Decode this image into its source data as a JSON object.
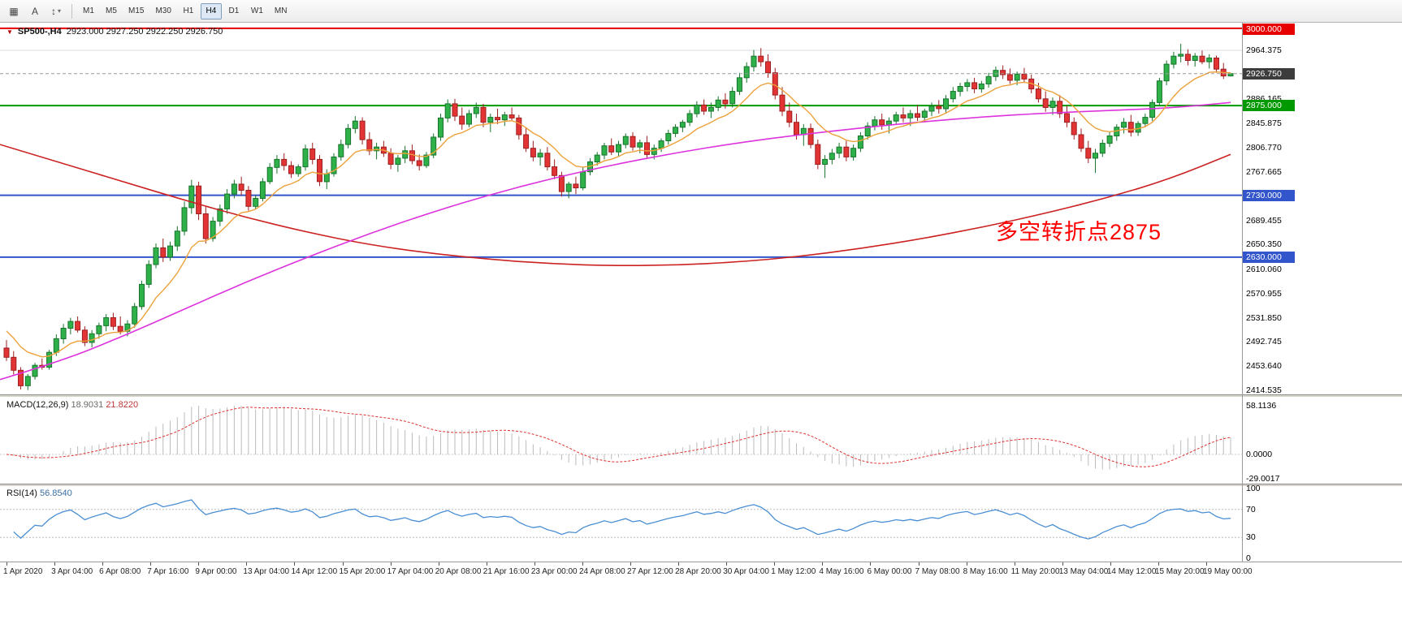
{
  "toolbar": {
    "tools": [
      {
        "name": "chart-window-tool",
        "glyph": "▦"
      },
      {
        "name": "text-annotation-tool",
        "glyph": "A"
      },
      {
        "name": "scale-tool",
        "glyph": "↕",
        "caret": "▾"
      }
    ],
    "timeframes": [
      "M1",
      "M5",
      "M15",
      "M30",
      "H1",
      "H4",
      "D1",
      "W1",
      "MN"
    ],
    "active_timeframe": "H4"
  },
  "chart_header": {
    "marker_glyph": "▼",
    "title": "SP500-,H4",
    "ohlc": "2923.000 2927.250 2922.250 2926.750"
  },
  "macd_panel": {
    "label": "MACD(12,26,9)",
    "value_main": "18.9031",
    "value_signal": "21.8220",
    "axis": [
      "58.1136",
      "0.0000",
      "-29.0017"
    ]
  },
  "rsi_panel": {
    "label": "RSI(14)",
    "value": "56.8540",
    "axis": [
      "100",
      "70",
      "30",
      "0"
    ]
  },
  "chart_data": {
    "type": "candlestick",
    "symbol": "SP500-",
    "timeframe": "H4",
    "ohlc_current": {
      "open": 2923.0,
      "high": 2927.25,
      "low": 2922.25,
      "close": 2926.75
    },
    "annotation": {
      "text": "多空转折点2875",
      "color": "#ff0000"
    },
    "colors": {
      "up": "#2fb14a",
      "up_border": "#17742c",
      "down": "#e23434",
      "down_border": "#9e1f1f",
      "ma_fast": "#eda13a",
      "ma_mid": "#dd33dd",
      "ma_slow": "#cc2222",
      "macd_hist": "#bbbbbb",
      "macd_signal": "#e03030",
      "rsi_line": "#4a8fd4"
    },
    "price_axis": {
      "labels": [
        "2964.375",
        "2886.165",
        "2845.875",
        "2806.770",
        "2767.665",
        "2689.455",
        "2650.350",
        "2610.060",
        "2570.955",
        "2531.850",
        "2492.745",
        "2453.640",
        "2414.535"
      ],
      "gridline_at": 2964.375
    },
    "hlines": [
      {
        "price": 3000.0,
        "label": "3000.000",
        "color": "#e60000"
      },
      {
        "price": 2926.75,
        "label": "2926.750",
        "color": "#3c3c3c",
        "style": "current"
      },
      {
        "price": 2875.0,
        "label": "2875.000",
        "color": "#009900"
      },
      {
        "price": 2730.0,
        "label": "2730.000",
        "color": "#3355cc"
      },
      {
        "price": 2630.0,
        "label": "2630.000",
        "color": "#3355cc"
      }
    ],
    "x_axis": {
      "labels": [
        "1 Apr 2020",
        "3 Apr 04:00",
        "6 Apr 08:00",
        "7 Apr 16:00",
        "9 Apr 00:00",
        "13 Apr 04:00",
        "14 Apr 12:00",
        "15 Apr 20:00",
        "17 Apr 04:00",
        "20 Apr 08:00",
        "21 Apr 16:00",
        "23 Apr 00:00",
        "24 Apr 08:00",
        "27 Apr 12:00",
        "28 Apr 20:00",
        "30 Apr 04:00",
        "1 May 12:00",
        "4 May 16:00",
        "6 May 00:00",
        "7 May 08:00",
        "8 May 16:00",
        "11 May 20:00",
        "13 May 04:00",
        "14 May 12:00",
        "15 May 20:00",
        "19 May 00:00"
      ]
    },
    "indicators": {
      "macd": {
        "fast": 12,
        "slow": 26,
        "signal": 9,
        "current_main": 18.9031,
        "current_signal": 21.822,
        "range": [
          -29.0017,
          58.1136
        ]
      },
      "rsi": {
        "period": 14,
        "current": 56.854,
        "levels": [
          30,
          70
        ],
        "range": [
          0,
          100
        ]
      }
    },
    "ma_fast": {
      "type": "ema",
      "period": 10,
      "seed": 2520
    },
    "ma_mid": {
      "points": [
        [
          0,
          2432
        ],
        [
          0.05,
          2462
        ],
        [
          0.1,
          2502
        ],
        [
          0.15,
          2546
        ],
        [
          0.2,
          2590
        ],
        [
          0.25,
          2630
        ],
        [
          0.3,
          2668
        ],
        [
          0.35,
          2702
        ],
        [
          0.4,
          2732
        ],
        [
          0.45,
          2758
        ],
        [
          0.5,
          2780
        ],
        [
          0.55,
          2799
        ],
        [
          0.6,
          2815
        ],
        [
          0.65,
          2828
        ],
        [
          0.7,
          2839
        ],
        [
          0.75,
          2849
        ],
        [
          0.8,
          2857
        ],
        [
          0.85,
          2863
        ],
        [
          0.9,
          2867
        ],
        [
          0.95,
          2871
        ],
        [
          1,
          2880
        ]
      ]
    },
    "ma_slow": {
      "points": [
        [
          0,
          2812
        ],
        [
          0.05,
          2782
        ],
        [
          0.1,
          2752
        ],
        [
          0.15,
          2722
        ],
        [
          0.2,
          2694
        ],
        [
          0.25,
          2670
        ],
        [
          0.3,
          2650
        ],
        [
          0.35,
          2636
        ],
        [
          0.4,
          2626
        ],
        [
          0.45,
          2619
        ],
        [
          0.5,
          2616
        ],
        [
          0.55,
          2617
        ],
        [
          0.6,
          2622
        ],
        [
          0.65,
          2631
        ],
        [
          0.7,
          2644
        ],
        [
          0.75,
          2660
        ],
        [
          0.8,
          2679
        ],
        [
          0.85,
          2701
        ],
        [
          0.9,
          2726
        ],
        [
          0.95,
          2756
        ],
        [
          1,
          2796
        ]
      ]
    },
    "candles": [
      [
        2483,
        2496,
        2462,
        2468
      ],
      [
        2468,
        2478,
        2440,
        2447
      ],
      [
        2447,
        2452,
        2416,
        2422
      ],
      [
        2422,
        2441,
        2415,
        2437
      ],
      [
        2437,
        2459,
        2432,
        2455
      ],
      [
        2455,
        2466,
        2448,
        2452
      ],
      [
        2452,
        2480,
        2448,
        2476
      ],
      [
        2476,
        2505,
        2470,
        2498
      ],
      [
        2498,
        2522,
        2490,
        2515
      ],
      [
        2515,
        2532,
        2505,
        2526
      ],
      [
        2526,
        2534,
        2508,
        2512
      ],
      [
        2512,
        2518,
        2486,
        2492
      ],
      [
        2492,
        2512,
        2484,
        2506
      ],
      [
        2506,
        2524,
        2498,
        2519
      ],
      [
        2519,
        2538,
        2510,
        2532
      ],
      [
        2532,
        2540,
        2512,
        2518
      ],
      [
        2518,
        2534,
        2505,
        2510
      ],
      [
        2510,
        2528,
        2502,
        2522
      ],
      [
        2522,
        2556,
        2516,
        2550
      ],
      [
        2550,
        2592,
        2545,
        2586
      ],
      [
        2586,
        2625,
        2580,
        2618
      ],
      [
        2618,
        2652,
        2612,
        2645
      ],
      [
        2645,
        2660,
        2622,
        2630
      ],
      [
        2630,
        2655,
        2624,
        2648
      ],
      [
        2648,
        2680,
        2640,
        2672
      ],
      [
        2672,
        2720,
        2665,
        2710
      ],
      [
        2710,
        2755,
        2700,
        2745
      ],
      [
        2745,
        2752,
        2690,
        2700
      ],
      [
        2700,
        2712,
        2652,
        2660
      ],
      [
        2660,
        2695,
        2655,
        2688
      ],
      [
        2688,
        2715,
        2680,
        2708
      ],
      [
        2708,
        2740,
        2700,
        2732
      ],
      [
        2732,
        2755,
        2725,
        2748
      ],
      [
        2748,
        2760,
        2730,
        2738
      ],
      [
        2738,
        2745,
        2705,
        2712
      ],
      [
        2712,
        2730,
        2708,
        2725
      ],
      [
        2725,
        2758,
        2720,
        2752
      ],
      [
        2752,
        2782,
        2748,
        2775
      ],
      [
        2775,
        2795,
        2765,
        2788
      ],
      [
        2788,
        2798,
        2770,
        2778
      ],
      [
        2778,
        2785,
        2758,
        2765
      ],
      [
        2765,
        2780,
        2760,
        2776
      ],
      [
        2776,
        2812,
        2770,
        2805
      ],
      [
        2805,
        2815,
        2780,
        2788
      ],
      [
        2788,
        2795,
        2745,
        2752
      ],
      [
        2752,
        2772,
        2740,
        2765
      ],
      [
        2765,
        2798,
        2760,
        2792
      ],
      [
        2792,
        2820,
        2786,
        2812
      ],
      [
        2812,
        2845,
        2806,
        2838
      ],
      [
        2838,
        2858,
        2830,
        2850
      ],
      [
        2850,
        2856,
        2812,
        2820
      ],
      [
        2820,
        2832,
        2795,
        2802
      ],
      [
        2802,
        2815,
        2788,
        2808
      ],
      [
        2808,
        2818,
        2792,
        2798
      ],
      [
        2798,
        2806,
        2772,
        2780
      ],
      [
        2780,
        2795,
        2768,
        2790
      ],
      [
        2790,
        2810,
        2782,
        2802
      ],
      [
        2802,
        2812,
        2780,
        2786
      ],
      [
        2786,
        2796,
        2770,
        2778
      ],
      [
        2778,
        2800,
        2774,
        2795
      ],
      [
        2795,
        2830,
        2790,
        2824
      ],
      [
        2824,
        2862,
        2818,
        2855
      ],
      [
        2855,
        2885,
        2848,
        2878
      ],
      [
        2878,
        2886,
        2850,
        2858
      ],
      [
        2858,
        2872,
        2836,
        2845
      ],
      [
        2845,
        2868,
        2840,
        2862
      ],
      [
        2862,
        2880,
        2855,
        2872
      ],
      [
        2872,
        2878,
        2840,
        2848
      ],
      [
        2848,
        2862,
        2832,
        2856
      ],
      [
        2856,
        2870,
        2845,
        2852
      ],
      [
        2852,
        2865,
        2842,
        2860
      ],
      [
        2860,
        2872,
        2850,
        2855
      ],
      [
        2855,
        2860,
        2820,
        2828
      ],
      [
        2828,
        2840,
        2800,
        2806
      ],
      [
        2806,
        2818,
        2785,
        2792
      ],
      [
        2792,
        2805,
        2778,
        2798
      ],
      [
        2798,
        2808,
        2770,
        2776
      ],
      [
        2776,
        2788,
        2756,
        2762
      ],
      [
        2762,
        2768,
        2728,
        2736
      ],
      [
        2736,
        2752,
        2725,
        2748
      ],
      [
        2748,
        2760,
        2732,
        2742
      ],
      [
        2742,
        2775,
        2738,
        2768
      ],
      [
        2768,
        2790,
        2762,
        2784
      ],
      [
        2784,
        2800,
        2778,
        2795
      ],
      [
        2795,
        2815,
        2788,
        2810
      ],
      [
        2810,
        2822,
        2795,
        2800
      ],
      [
        2800,
        2818,
        2792,
        2812
      ],
      [
        2812,
        2830,
        2806,
        2825
      ],
      [
        2825,
        2832,
        2802,
        2808
      ],
      [
        2808,
        2820,
        2798,
        2815
      ],
      [
        2815,
        2826,
        2790,
        2796
      ],
      [
        2796,
        2812,
        2788,
        2806
      ],
      [
        2806,
        2822,
        2800,
        2818
      ],
      [
        2818,
        2836,
        2812,
        2830
      ],
      [
        2830,
        2845,
        2824,
        2840
      ],
      [
        2840,
        2852,
        2832,
        2848
      ],
      [
        2848,
        2868,
        2842,
        2862
      ],
      [
        2862,
        2882,
        2856,
        2876
      ],
      [
        2876,
        2885,
        2860,
        2866
      ],
      [
        2866,
        2880,
        2855,
        2872
      ],
      [
        2872,
        2890,
        2866,
        2884
      ],
      [
        2884,
        2895,
        2870,
        2878
      ],
      [
        2878,
        2905,
        2872,
        2898
      ],
      [
        2898,
        2928,
        2892,
        2920
      ],
      [
        2920,
        2945,
        2912,
        2938
      ],
      [
        2938,
        2965,
        2930,
        2955
      ],
      [
        2955,
        2968,
        2938,
        2946
      ],
      [
        2946,
        2958,
        2920,
        2928
      ],
      [
        2928,
        2936,
        2885,
        2892
      ],
      [
        2892,
        2905,
        2858,
        2866
      ],
      [
        2866,
        2880,
        2840,
        2848
      ],
      [
        2848,
        2862,
        2820,
        2828
      ],
      [
        2828,
        2845,
        2810,
        2838
      ],
      [
        2838,
        2846,
        2806,
        2812
      ],
      [
        2812,
        2820,
        2772,
        2780
      ],
      [
        2780,
        2795,
        2758,
        2788
      ],
      [
        2788,
        2805,
        2780,
        2798
      ],
      [
        2798,
        2815,
        2790,
        2808
      ],
      [
        2808,
        2818,
        2785,
        2792
      ],
      [
        2792,
        2812,
        2786,
        2806
      ],
      [
        2806,
        2832,
        2800,
        2826
      ],
      [
        2826,
        2848,
        2820,
        2842
      ],
      [
        2842,
        2858,
        2835,
        2852
      ],
      [
        2852,
        2862,
        2836,
        2844
      ],
      [
        2844,
        2856,
        2830,
        2850
      ],
      [
        2850,
        2865,
        2844,
        2860
      ],
      [
        2860,
        2872,
        2848,
        2855
      ],
      [
        2855,
        2868,
        2842,
        2862
      ],
      [
        2862,
        2876,
        2850,
        2856
      ],
      [
        2856,
        2870,
        2848,
        2866
      ],
      [
        2866,
        2880,
        2858,
        2874
      ],
      [
        2874,
        2884,
        2862,
        2870
      ],
      [
        2870,
        2892,
        2864,
        2886
      ],
      [
        2886,
        2905,
        2880,
        2898
      ],
      [
        2898,
        2912,
        2890,
        2906
      ],
      [
        2906,
        2918,
        2898,
        2912
      ],
      [
        2912,
        2920,
        2895,
        2902
      ],
      [
        2902,
        2915,
        2896,
        2910
      ],
      [
        2910,
        2928,
        2904,
        2922
      ],
      [
        2922,
        2938,
        2915,
        2932
      ],
      [
        2932,
        2940,
        2918,
        2925
      ],
      [
        2925,
        2935,
        2910,
        2916
      ],
      [
        2916,
        2930,
        2908,
        2926
      ],
      [
        2926,
        2936,
        2912,
        2918
      ],
      [
        2918,
        2925,
        2895,
        2902
      ],
      [
        2902,
        2912,
        2880,
        2886
      ],
      [
        2886,
        2898,
        2865,
        2872
      ],
      [
        2872,
        2888,
        2860,
        2882
      ],
      [
        2882,
        2892,
        2855,
        2862
      ],
      [
        2862,
        2875,
        2840,
        2848
      ],
      [
        2848,
        2856,
        2820,
        2828
      ],
      [
        2828,
        2838,
        2800,
        2806
      ],
      [
        2806,
        2818,
        2782,
        2790
      ],
      [
        2790,
        2805,
        2766,
        2798
      ],
      [
        2798,
        2820,
        2792,
        2814
      ],
      [
        2814,
        2832,
        2808,
        2826
      ],
      [
        2826,
        2845,
        2818,
        2840
      ],
      [
        2840,
        2855,
        2830,
        2848
      ],
      [
        2848,
        2860,
        2825,
        2832
      ],
      [
        2832,
        2850,
        2826,
        2846
      ],
      [
        2846,
        2862,
        2840,
        2856
      ],
      [
        2856,
        2885,
        2850,
        2880
      ],
      [
        2880,
        2920,
        2874,
        2915
      ],
      [
        2915,
        2948,
        2908,
        2942
      ],
      [
        2942,
        2962,
        2935,
        2955
      ],
      [
        2955,
        2975,
        2945,
        2958
      ],
      [
        2958,
        2966,
        2940,
        2948
      ],
      [
        2948,
        2960,
        2938,
        2955
      ],
      [
        2955,
        2964,
        2942,
        2946
      ],
      [
        2946,
        2958,
        2935,
        2952
      ],
      [
        2952,
        2956,
        2928,
        2934
      ],
      [
        2934,
        2944,
        2918,
        2923
      ],
      [
        2923,
        2927.25,
        2922.25,
        2926.75
      ]
    ]
  }
}
